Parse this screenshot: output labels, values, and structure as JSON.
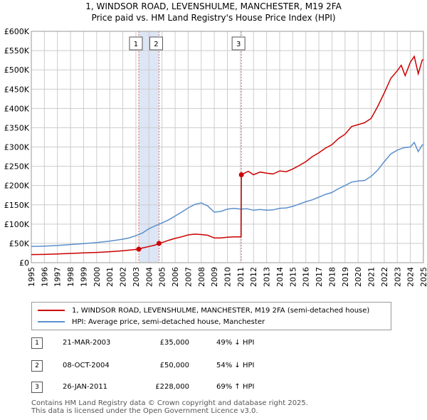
{
  "title_line1": "1, WINDSOR ROAD, LEVENSHULME, MANCHESTER, M19 2FA",
  "title_line2": "Price paid vs. HM Land Registry's House Price Index (HPI)",
  "colors": {
    "property": "#cc0000",
    "hpi": "#5b8fcc",
    "shade": "#dde6f5",
    "grid": "#cccccc"
  },
  "chart_data": {
    "type": "line",
    "x_range": [
      1995,
      2025
    ],
    "ylim": [
      0,
      600000
    ],
    "y_ticks": [
      {
        "value": 0,
        "label": "£0"
      },
      {
        "value": 50000,
        "label": "£50K"
      },
      {
        "value": 100000,
        "label": "£100K"
      },
      {
        "value": 150000,
        "label": "£150K"
      },
      {
        "value": 200000,
        "label": "£200K"
      },
      {
        "value": 250000,
        "label": "£250K"
      },
      {
        "value": 300000,
        "label": "£300K"
      },
      {
        "value": 350000,
        "label": "£350K"
      },
      {
        "value": 400000,
        "label": "£400K"
      },
      {
        "value": 450000,
        "label": "£450K"
      },
      {
        "value": 500000,
        "label": "£500K"
      },
      {
        "value": 550000,
        "label": "£550K"
      },
      {
        "value": 600000,
        "label": "£600K"
      }
    ],
    "x_ticks": [
      "1995",
      "1996",
      "1997",
      "1998",
      "1999",
      "2000",
      "2001",
      "2002",
      "2003",
      "2004",
      "2005",
      "2006",
      "2007",
      "2008",
      "2009",
      "2010",
      "2011",
      "2012",
      "2013",
      "2014",
      "2015",
      "2016",
      "2017",
      "2018",
      "2019",
      "2020",
      "2021",
      "2022",
      "2023",
      "2024",
      "2025"
    ],
    "series": [
      {
        "name": "1, WINDSOR ROAD, LEVENSHULME, MANCHESTER, M19 2FA (semi-detached house)",
        "color": "#cc0000",
        "points": [
          [
            1995.0,
            21000
          ],
          [
            1996.0,
            21500
          ],
          [
            1997.0,
            22500
          ],
          [
            1998.0,
            24000
          ],
          [
            1999.0,
            25500
          ],
          [
            2000.0,
            26500
          ],
          [
            2001.0,
            28500
          ],
          [
            2002.0,
            31000
          ],
          [
            2003.22,
            35000
          ],
          [
            2003.5,
            38000
          ],
          [
            2004.0,
            42000
          ],
          [
            2004.5,
            46000
          ],
          [
            2004.77,
            50000
          ],
          [
            2005.0,
            52000
          ],
          [
            2005.5,
            58000
          ],
          [
            2006.0,
            63000
          ],
          [
            2006.5,
            67000
          ],
          [
            2007.0,
            72000
          ],
          [
            2007.5,
            74000
          ],
          [
            2008.0,
            73000
          ],
          [
            2008.5,
            71000
          ],
          [
            2009.0,
            64000
          ],
          [
            2009.5,
            64000
          ],
          [
            2010.0,
            66000
          ],
          [
            2010.5,
            67000
          ],
          [
            2011.05,
            67000
          ],
          [
            2011.07,
            228000
          ],
          [
            2011.3,
            232000
          ],
          [
            2011.6,
            237000
          ],
          [
            2012.0,
            228000
          ],
          [
            2012.5,
            235000
          ],
          [
            2013.0,
            232000
          ],
          [
            2013.5,
            230000
          ],
          [
            2014.0,
            238000
          ],
          [
            2014.5,
            236000
          ],
          [
            2015.0,
            243000
          ],
          [
            2015.5,
            252000
          ],
          [
            2016.0,
            262000
          ],
          [
            2016.5,
            275000
          ],
          [
            2017.0,
            285000
          ],
          [
            2017.5,
            297000
          ],
          [
            2018.0,
            306000
          ],
          [
            2018.5,
            322000
          ],
          [
            2019.0,
            333000
          ],
          [
            2019.5,
            353000
          ],
          [
            2020.0,
            358000
          ],
          [
            2020.5,
            363000
          ],
          [
            2021.0,
            374000
          ],
          [
            2021.5,
            405000
          ],
          [
            2022.0,
            440000
          ],
          [
            2022.5,
            478000
          ],
          [
            2023.0,
            498000
          ],
          [
            2023.3,
            512000
          ],
          [
            2023.6,
            485000
          ],
          [
            2024.0,
            520000
          ],
          [
            2024.3,
            535000
          ],
          [
            2024.6,
            490000
          ],
          [
            2024.9,
            525000
          ],
          [
            2025.0,
            527000
          ]
        ]
      },
      {
        "name": "HPI: Average price, semi-detached house, Manchester",
        "color": "#5b8fcc",
        "points": [
          [
            1995.0,
            42000
          ],
          [
            1996.0,
            43000
          ],
          [
            1997.0,
            44500
          ],
          [
            1998.0,
            47000
          ],
          [
            1999.0,
            49500
          ],
          [
            2000.0,
            52000
          ],
          [
            2001.0,
            56000
          ],
          [
            2002.0,
            61000
          ],
          [
            2002.5,
            64500
          ],
          [
            2003.0,
            70000
          ],
          [
            2003.5,
            77000
          ],
          [
            2004.0,
            88000
          ],
          [
            2004.5,
            96000
          ],
          [
            2005.0,
            103000
          ],
          [
            2005.5,
            111000
          ],
          [
            2006.0,
            121000
          ],
          [
            2006.5,
            131000
          ],
          [
            2007.0,
            142000
          ],
          [
            2007.5,
            151000
          ],
          [
            2008.0,
            155000
          ],
          [
            2008.5,
            147000
          ],
          [
            2009.0,
            131000
          ],
          [
            2009.5,
            133000
          ],
          [
            2010.0,
            139000
          ],
          [
            2010.5,
            141000
          ],
          [
            2011.0,
            139000
          ],
          [
            2011.5,
            140000
          ],
          [
            2012.0,
            136000
          ],
          [
            2012.5,
            138000
          ],
          [
            2013.0,
            136000
          ],
          [
            2013.5,
            137000
          ],
          [
            2014.0,
            141000
          ],
          [
            2014.5,
            142000
          ],
          [
            2015.0,
            146000
          ],
          [
            2015.5,
            152000
          ],
          [
            2016.0,
            158000
          ],
          [
            2016.5,
            163000
          ],
          [
            2017.0,
            170000
          ],
          [
            2017.5,
            177000
          ],
          [
            2018.0,
            182000
          ],
          [
            2018.5,
            192000
          ],
          [
            2019.0,
            200000
          ],
          [
            2019.5,
            209000
          ],
          [
            2020.0,
            212000
          ],
          [
            2020.5,
            213000
          ],
          [
            2021.0,
            224000
          ],
          [
            2021.5,
            240000
          ],
          [
            2022.0,
            262000
          ],
          [
            2022.5,
            282000
          ],
          [
            2023.0,
            292000
          ],
          [
            2023.5,
            298000
          ],
          [
            2024.0,
            300000
          ],
          [
            2024.3,
            312000
          ],
          [
            2024.6,
            288000
          ],
          [
            2024.9,
            305000
          ],
          [
            2025.0,
            306000
          ]
        ]
      }
    ],
    "sales": [
      {
        "id": "1",
        "x": 2003.22,
        "price": 35000
      },
      {
        "id": "2",
        "x": 2004.77,
        "price": 50000
      },
      {
        "id": "3",
        "x": 2011.07,
        "price": 228000
      }
    ]
  },
  "legend": {
    "property_label": "1, WINDSOR ROAD, LEVENSHULME, MANCHESTER, M19 2FA (semi-detached house)",
    "hpi_label": "HPI: Average price, semi-detached house, Manchester"
  },
  "sales_table": [
    {
      "num": "1",
      "date": "21-MAR-2003",
      "price": "£35,000",
      "hpi": "49% ↓ HPI"
    },
    {
      "num": "2",
      "date": "08-OCT-2004",
      "price": "£50,000",
      "hpi": "54% ↓ HPI"
    },
    {
      "num": "3",
      "date": "26-JAN-2011",
      "price": "£228,000",
      "hpi": "69% ↑ HPI"
    }
  ],
  "footer_line1": "Contains HM Land Registry data © Crown copyright and database right 2025.",
  "footer_line2": "This data is licensed under the Open Government Licence v3.0."
}
